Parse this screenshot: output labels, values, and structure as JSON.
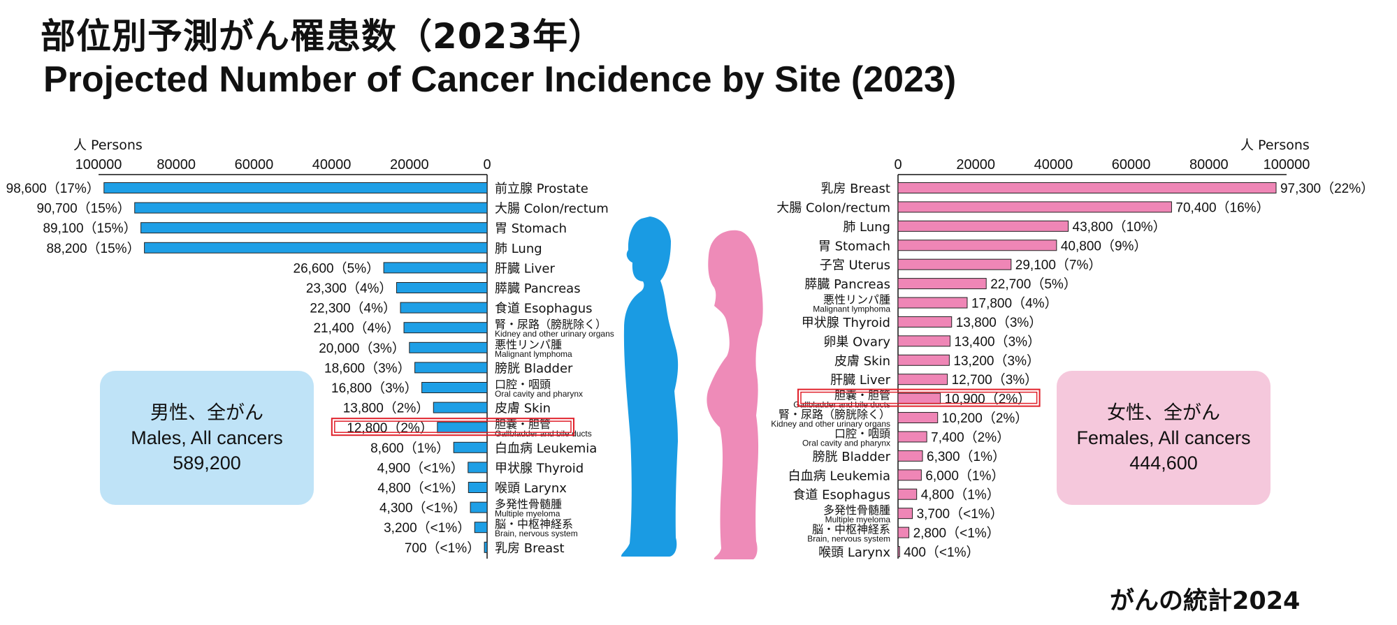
{
  "title_jp": "部位別予測がん罹患数（2023年）",
  "title_en": "Projected Number of Cancer Incidence by Site (2023)",
  "source": "がんの統計2024",
  "summary": {
    "male": {
      "line1": "男性、全がん",
      "line2": "Males, All cancers",
      "total": "589,200"
    },
    "female": {
      "line1": "女性、全がん",
      "line2": "Females, All cancers",
      "total": "444,600"
    }
  },
  "colors": {
    "male_bar": "#1e9fe6",
    "female_bar": "#ef86b6",
    "highlight": "#e0202a",
    "male_figure": "#1a9be3",
    "female_figure": "#ee8bb8"
  },
  "icons": [
    "male-silhouette-icon",
    "female-silhouette-icon"
  ],
  "chart_data": [
    {
      "type": "bar",
      "orientation": "horizontal",
      "direction": "right-to-left",
      "axis_unit_label": "人 Persons",
      "xlim": [
        0,
        100000
      ],
      "ticks": [
        "100000",
        "80000",
        "60000",
        "40000",
        "20000",
        "0"
      ],
      "grid": false,
      "highlighted_category": "胆嚢・胆管",
      "categories": [
        {
          "jp": "前立腺",
          "en": "Prostate",
          "value": 98600,
          "label": "98,600（17%）",
          "layout": "inline"
        },
        {
          "jp": "大腸",
          "en": "Colon/rectum",
          "value": 90700,
          "label": "90,700（15%）",
          "layout": "inline"
        },
        {
          "jp": "胃",
          "en": "Stomach",
          "value": 89100,
          "label": "89,100（15%）",
          "layout": "inline"
        },
        {
          "jp": "肺",
          "en": "Lung",
          "value": 88200,
          "label": "88,200（15%）",
          "layout": "inline"
        },
        {
          "jp": "肝臓",
          "en": "Liver",
          "value": 26600,
          "label": "26,600（5%）",
          "layout": "inline"
        },
        {
          "jp": "膵臓",
          "en": "Pancreas",
          "value": 23300,
          "label": "23,300（4%）",
          "layout": "inline"
        },
        {
          "jp": "食道",
          "en": "Esophagus",
          "value": 22300,
          "label": "22,300（4%）",
          "layout": "inline"
        },
        {
          "jp": "腎・尿路（膀胱除く）",
          "en": "Kidney and other urinary organs",
          "value": 21400,
          "label": "21,400（4%）",
          "layout": "stacked"
        },
        {
          "jp": "悪性リンパ腫",
          "en": "Malignant lymphoma",
          "value": 20000,
          "label": "20,000（3%）",
          "layout": "stacked"
        },
        {
          "jp": "膀胱",
          "en": "Bladder",
          "value": 18600,
          "label": "18,600（3%）",
          "layout": "inline"
        },
        {
          "jp": "口腔・咽頭",
          "en": "Oral cavity and pharynx",
          "value": 16800,
          "label": "16,800（3%）",
          "layout": "stacked"
        },
        {
          "jp": "皮膚",
          "en": "Skin",
          "value": 13800,
          "label": "13,800（2%）",
          "layout": "inline"
        },
        {
          "jp": "胆嚢・胆管",
          "en": "Gallbladder and bile ducts",
          "value": 12800,
          "label": "12,800（2%）",
          "layout": "stacked"
        },
        {
          "jp": "白血病",
          "en": "Leukemia",
          "value": 8600,
          "label": "8,600（1%）",
          "layout": "inline"
        },
        {
          "jp": "甲状腺",
          "en": "Thyroid",
          "value": 4900,
          "label": "4,900（<1%）",
          "layout": "inline"
        },
        {
          "jp": "喉頭",
          "en": "Larynx",
          "value": 4800,
          "label": "4,800（<1%）",
          "layout": "inline"
        },
        {
          "jp": "多発性骨髄腫",
          "en": "Multiple myeloma",
          "value": 4300,
          "label": "4,300（<1%）",
          "layout": "stacked"
        },
        {
          "jp": "脳・中枢神経系",
          "en": "Brain, nervous system",
          "value": 3200,
          "label": "3,200（<1%）",
          "layout": "stacked"
        },
        {
          "jp": "乳房",
          "en": "Breast",
          "value": 700,
          "label": "700（<1%）",
          "layout": "inline"
        }
      ]
    },
    {
      "type": "bar",
      "orientation": "horizontal",
      "direction": "left-to-right",
      "axis_unit_label": "人 Persons",
      "xlim": [
        0,
        100000
      ],
      "ticks": [
        "0",
        "20000",
        "40000",
        "60000",
        "80000",
        "100000"
      ],
      "grid": false,
      "highlighted_category": "胆嚢・胆管",
      "categories": [
        {
          "jp": "乳房",
          "en": "Breast",
          "value": 97300,
          "label": "97,300（22%）",
          "layout": "inline"
        },
        {
          "jp": "大腸",
          "en": "Colon/rectum",
          "value": 70400,
          "label": "70,400（16%）",
          "layout": "inline"
        },
        {
          "jp": "肺",
          "en": "Lung",
          "value": 43800,
          "label": "43,800（10%）",
          "layout": "inline"
        },
        {
          "jp": "胃",
          "en": "Stomach",
          "value": 40800,
          "label": "40,800（9%）",
          "layout": "inline"
        },
        {
          "jp": "子宮",
          "en": "Uterus",
          "value": 29100,
          "label": "29,100（7%）",
          "layout": "inline"
        },
        {
          "jp": "膵臓",
          "en": "Pancreas",
          "value": 22700,
          "label": "22,700（5%）",
          "layout": "inline"
        },
        {
          "jp": "悪性リンパ腫",
          "en": "Malignant lymphoma",
          "value": 17800,
          "label": "17,800（4%）",
          "layout": "stacked"
        },
        {
          "jp": "甲状腺",
          "en": "Thyroid",
          "value": 13800,
          "label": "13,800（3%）",
          "layout": "inline"
        },
        {
          "jp": "卵巣",
          "en": "Ovary",
          "value": 13400,
          "label": "13,400（3%）",
          "layout": "inline"
        },
        {
          "jp": "皮膚",
          "en": "Skin",
          "value": 13200,
          "label": "13,200（3%）",
          "layout": "inline"
        },
        {
          "jp": "肝臓",
          "en": "Liver",
          "value": 12700,
          "label": "12,700（3%）",
          "layout": "inline"
        },
        {
          "jp": "胆嚢・胆管",
          "en": "Gallbladder and bile ducts",
          "value": 10900,
          "label": "10,900（2%）",
          "layout": "stacked"
        },
        {
          "jp": "腎・尿路（膀胱除く）",
          "en": "Kidney and other urinary organs",
          "value": 10200,
          "label": "10,200（2%）",
          "layout": "stacked"
        },
        {
          "jp": "口腔・咽頭",
          "en": "Oral cavity and pharynx",
          "value": 7400,
          "label": "7,400（2%）",
          "layout": "stacked"
        },
        {
          "jp": "膀胱",
          "en": "Bladder",
          "value": 6300,
          "label": "6,300（1%）",
          "layout": "inline"
        },
        {
          "jp": "白血病",
          "en": "Leukemia",
          "value": 6000,
          "label": "6,000（1%）",
          "layout": "inline"
        },
        {
          "jp": "食道",
          "en": "Esophagus",
          "value": 4800,
          "label": "4,800（1%）",
          "layout": "inline"
        },
        {
          "jp": "多発性骨髄腫",
          "en": "Multiple myeloma",
          "value": 3700,
          "label": "3,700（<1%）",
          "layout": "stacked"
        },
        {
          "jp": "脳・中枢神経系",
          "en": "Brain, nervous system",
          "value": 2800,
          "label": "2,800（<1%）",
          "layout": "stacked"
        },
        {
          "jp": "喉頭",
          "en": "Larynx",
          "value": 400,
          "label": "400（<1%）",
          "layout": "inline"
        }
      ]
    }
  ]
}
